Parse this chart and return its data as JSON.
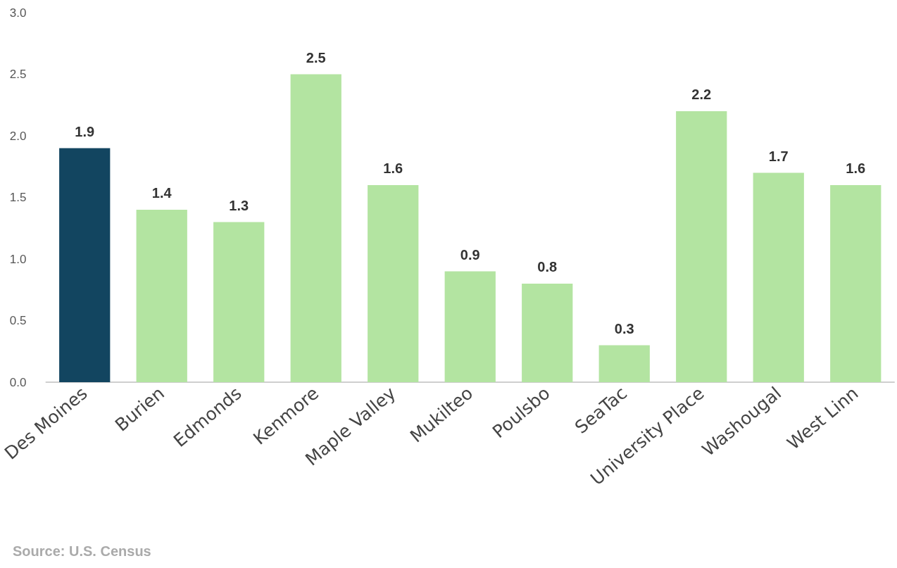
{
  "chart_data": {
    "type": "bar",
    "categories": [
      "Des Moines",
      "Burien",
      "Edmonds",
      "Kenmore",
      "Maple Valley",
      "Mukilteo",
      "Poulsbo",
      "SeaTac",
      "University Place",
      "Washougal",
      "West Linn"
    ],
    "values": [
      1.9,
      1.4,
      1.3,
      2.5,
      1.6,
      0.9,
      0.8,
      0.3,
      2.2,
      1.7,
      1.6
    ],
    "colors": [
      "#124560",
      "#b3e4a1",
      "#b3e4a1",
      "#b3e4a1",
      "#b3e4a1",
      "#b3e4a1",
      "#b3e4a1",
      "#b3e4a1",
      "#b3e4a1",
      "#b3e4a1",
      "#b3e4a1"
    ],
    "ylim": [
      0,
      3
    ],
    "yticks": [
      {
        "value": 0,
        "label": "0.0"
      },
      {
        "value": 0.5,
        "label": "0.5"
      },
      {
        "value": 1,
        "label": "1.0"
      },
      {
        "value": 1.5,
        "label": "1.5"
      },
      {
        "value": 2,
        "label": "2.0"
      },
      {
        "value": 2.5,
        "label": "2.5"
      },
      {
        "value": 3,
        "label": "3.0"
      }
    ],
    "grid": false,
    "data_labels": true,
    "annotations": [
      "Source: U.S. Census"
    ]
  }
}
